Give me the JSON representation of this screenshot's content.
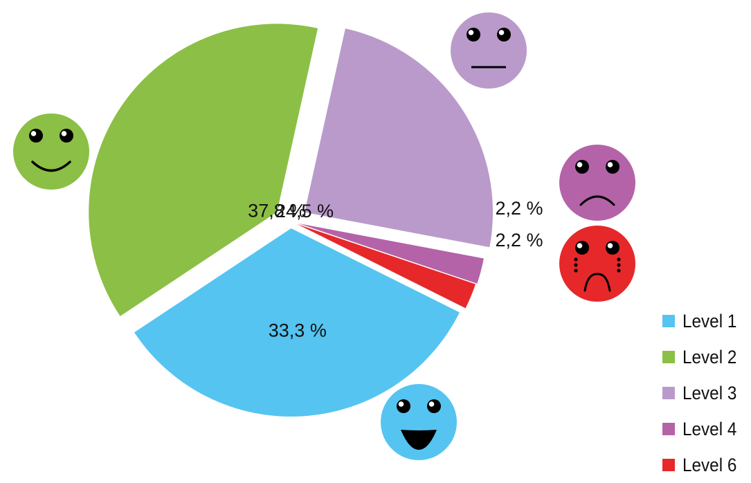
{
  "chart_data": {
    "type": "pie",
    "categories": [
      "Level 1",
      "Level 2",
      "Level 3",
      "Level 4",
      "Level 6"
    ],
    "values": [
      33.3,
      37.8,
      24.5,
      2.2,
      2.2
    ],
    "value_labels": [
      "33,3 %",
      "37,8 %",
      "24,5 %",
      "2,2 %",
      "2,2 %"
    ],
    "colors": [
      "#55C4F1",
      "#8CBF45",
      "#BA9ACB",
      "#B463A8",
      "#E6282A"
    ],
    "emoticons": [
      "big-smile-face",
      "smile-face",
      "neutral-face",
      "sad-face",
      "crying-face"
    ],
    "exploded": true,
    "legend_position": "bottom-right"
  }
}
